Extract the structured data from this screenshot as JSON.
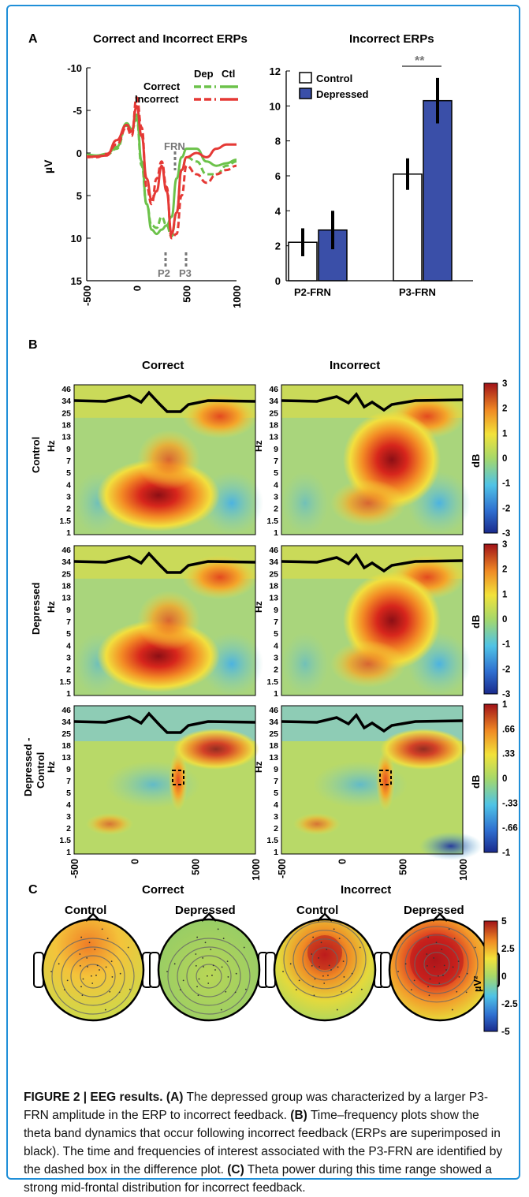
{
  "panel_letters": {
    "a": "A",
    "b": "B",
    "c": "C"
  },
  "panel_a": {
    "left_title": "Correct and Incorrect ERPs",
    "right_title": "Incorrect ERPs",
    "erp_ylabel": "µV",
    "erp_yticks": [
      "-10",
      "-5",
      "0",
      "5",
      "10",
      "15"
    ],
    "erp_xticks": [
      "-500",
      "0",
      "500",
      "1000"
    ],
    "legend_headers": [
      "Dep",
      "Ctl"
    ],
    "legend_rows": [
      "Correct",
      "Incorrect"
    ],
    "markers": [
      "FRN",
      "P2",
      "P3"
    ],
    "bar_yticks": [
      "0",
      "2",
      "4",
      "6",
      "8",
      "10",
      "12"
    ],
    "bar_legend": [
      "Control",
      "Depressed"
    ],
    "significance": "**",
    "colors": {
      "correct": "#6cc24a",
      "incorrect": "#e53935",
      "depressed_bar": "#3a4fa8",
      "control_bar": "#ffffff"
    }
  },
  "chart_data": [
    {
      "type": "line",
      "title": "Correct and Incorrect ERPs",
      "xlabel": "",
      "ylabel": "µV",
      "ylim": [
        15,
        -10
      ],
      "xlim": [
        -500,
        1000
      ],
      "x": [
        -500,
        -400,
        -300,
        -200,
        -100,
        -50,
        0,
        50,
        100,
        150,
        200,
        250,
        300,
        350,
        400,
        450,
        500,
        600,
        700,
        800,
        900,
        1000
      ],
      "series": [
        {
          "name": "Correct Dep",
          "values": [
            0.3,
            0.4,
            0.2,
            -0.5,
            -3.2,
            -2.6,
            -4.0,
            1.5,
            6.0,
            8.5,
            8.8,
            7.5,
            8.5,
            9.8,
            7.0,
            2.0,
            0.5,
            1.0,
            2.5,
            2.5,
            1.5,
            1.0
          ]
        },
        {
          "name": "Correct Ctl",
          "values": [
            0.2,
            0.3,
            0.1,
            -0.7,
            -3.5,
            -2.8,
            -4.5,
            1.0,
            6.0,
            9.0,
            9.5,
            9.0,
            8.5,
            7.5,
            3.0,
            0.5,
            -0.5,
            -0.5,
            1.0,
            1.5,
            1.2,
            0.8
          ]
        },
        {
          "name": "Incorrect Dep",
          "values": [
            0.4,
            0.5,
            0.1,
            -1.0,
            -3.0,
            -2.0,
            -6.5,
            -3.0,
            4.0,
            6.0,
            3.0,
            1.0,
            4.0,
            10.0,
            9.5,
            5.0,
            1.5,
            2.5,
            3.5,
            2.5,
            2.0,
            1.5
          ]
        },
        {
          "name": "Incorrect Ctl",
          "values": [
            0.5,
            0.4,
            0.3,
            -1.5,
            -3.3,
            -2.5,
            -5.5,
            -2.0,
            3.0,
            5.5,
            4.5,
            1.5,
            4.5,
            9.5,
            7.0,
            2.0,
            0.5,
            0.0,
            0.5,
            -0.5,
            -1.0,
            -1.0
          ]
        }
      ]
    },
    {
      "type": "bar",
      "title": "Incorrect ERPs",
      "categories": [
        "P2-FRN",
        "P3-FRN"
      ],
      "ylim": [
        0,
        12
      ],
      "series": [
        {
          "name": "Control",
          "values": [
            2.2,
            6.1
          ],
          "error": [
            0.8,
            0.9
          ]
        },
        {
          "name": "Depressed",
          "values": [
            2.9,
            10.3
          ],
          "error": [
            1.1,
            1.3
          ]
        }
      ]
    }
  ],
  "panel_b": {
    "col_titles": [
      "Correct",
      "Incorrect"
    ],
    "row_labels": [
      "Control",
      "Depressed",
      "Depressed -",
      "Control"
    ],
    "ylabel": "Hz",
    "hz_ticks": [
      "46",
      "34",
      "25",
      "18",
      "13",
      "9",
      "7",
      "5",
      "4",
      "3",
      "2",
      "1.5",
      "1"
    ],
    "hz_ticks_row12": [
      "46",
      "34",
      "25",
      "18",
      "13",
      "9",
      "7",
      "5",
      "4",
      "3",
      "2",
      "1.5",
      "1"
    ],
    "xticks": [
      "-500",
      "0",
      "500",
      "1000"
    ],
    "colorbar_label": "dB",
    "cbar_ticks_a": [
      "3",
      "2",
      "1",
      "0",
      "-1",
      "-2",
      "-3"
    ],
    "cbar_ticks_c": [
      "1",
      ".66",
      ".33",
      "0",
      "-.33",
      "-.66",
      "-1"
    ]
  },
  "panel_c": {
    "col_titles": [
      "Correct",
      "Incorrect"
    ],
    "sub_titles": [
      "Control",
      "Depressed",
      "Control",
      "Depressed"
    ],
    "colorbar_ticks": [
      "5",
      "2.5",
      "0",
      "-2.5",
      "-5"
    ],
    "colorbar_label": "µV²"
  },
  "caption": {
    "label": "FIGURE 2 | EEG results.",
    "a_tag": "(A)",
    "a_text": " The depressed group was characterized by a larger P3-FRN amplitude in the ERP to incorrect feedback. ",
    "b_tag": "(B)",
    "b_text": " Time–frequency plots show the theta band dynamics that occur following incorrect feedback (ERPs are superimposed in black). The time and frequencies of interest associated with the P3-FRN are identified by the dashed box in the difference plot. ",
    "c_tag": "(C)",
    "c_text": " Theta power during this time range showed a strong mid-frontal distribution for incorrect feedback."
  }
}
